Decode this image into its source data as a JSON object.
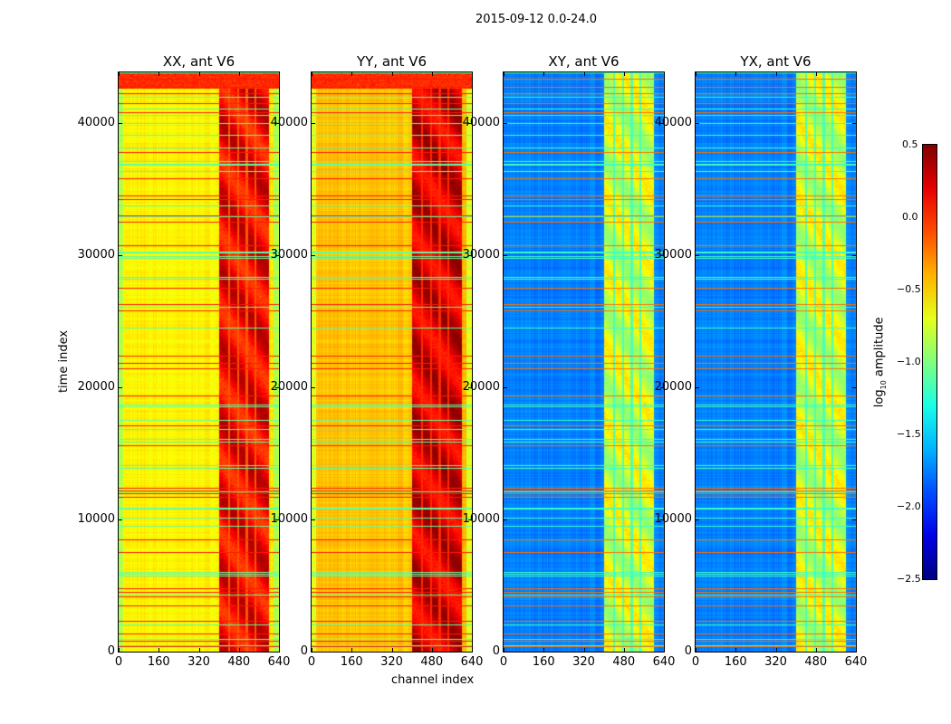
{
  "chart_data": {
    "type": "heatmap",
    "title": "2015-09-12 0.0-24.0",
    "xlabel": "channel index",
    "ylabel": "time index",
    "xlim": [
      0,
      640
    ],
    "ylim": [
      0,
      43800
    ],
    "xticks": [
      "0",
      "160",
      "320",
      "480",
      "640"
    ],
    "yticks": [
      "0",
      "10000",
      "20000",
      "30000",
      "40000"
    ],
    "colorbar": {
      "label_prefix": "log",
      "label_sub": "10",
      "label_suffix": " amplitude",
      "range": [
        -2.5,
        0.5
      ],
      "ticks": [
        "0.5",
        "0.0",
        "−0.5",
        "−1.0",
        "−1.5",
        "−2.0",
        "−2.5"
      ],
      "colormap": "jet"
    },
    "panels": [
      {
        "title": "XX, ant V6",
        "base_level": -0.6,
        "band_level": 0.15
      },
      {
        "title": "YY, ant V6",
        "base_level": -0.45,
        "band_level": 0.25
      },
      {
        "title": "XY, ant V6",
        "base_level": -1.75,
        "band_level": -0.75
      },
      {
        "title": "YX, ant V6",
        "base_level": -1.75,
        "band_level": -0.75
      }
    ],
    "band_channels": [
      400,
      600
    ],
    "flagged_times": [
      43300,
      42700,
      42200,
      41500,
      40800,
      37800,
      35800,
      34500,
      34200,
      33000,
      32500,
      30700,
      27500,
      26300,
      25800,
      22400,
      21800,
      21400,
      19400,
      17100,
      15600,
      12400,
      12200,
      12000,
      11700,
      8500,
      7500,
      4800,
      4500,
      4200,
      3500,
      2300,
      1400,
      800,
      400
    ]
  }
}
